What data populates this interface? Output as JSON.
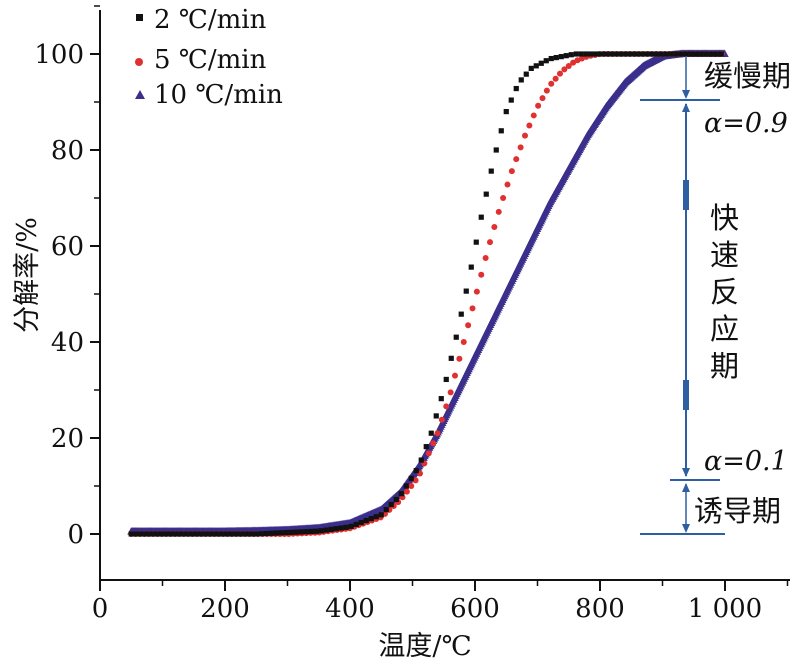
{
  "chart_data": {
    "type": "scatter",
    "xlabel": "温度/℃",
    "ylabel": "分解率/%",
    "xlim": [
      0,
      1100
    ],
    "ylim": [
      -10,
      110
    ],
    "xticks": [
      0,
      200,
      400,
      600,
      800,
      1000
    ],
    "xtick_labels": [
      "0",
      "200",
      "400",
      "600",
      "800",
      "1 000"
    ],
    "yticks": [
      0,
      20,
      40,
      60,
      80,
      100
    ],
    "ytick_labels": [
      "0",
      "20",
      "40",
      "60",
      "80",
      "100"
    ],
    "grid": false,
    "legend_position": "top-left",
    "series": [
      {
        "name": "2 ℃/min",
        "marker": "square",
        "color": "#111111",
        "x": [
          50,
          100,
          150,
          200,
          250,
          300,
          350,
          400,
          450,
          480,
          510,
          530,
          550,
          570,
          590,
          610,
          630,
          650,
          670,
          690,
          720,
          760,
          800,
          860,
          920,
          1000
        ],
        "y": [
          0,
          0,
          0,
          0,
          0,
          0.3,
          0.6,
          1.5,
          4,
          8,
          14,
          21,
          30,
          41,
          53,
          66,
          78,
          88,
          94,
          97,
          99,
          100,
          100,
          100,
          100,
          100
        ]
      },
      {
        "name": "5 ℃/min",
        "marker": "circle",
        "color": "#e03030",
        "x": [
          50,
          100,
          150,
          200,
          250,
          300,
          350,
          400,
          450,
          480,
          510,
          540,
          560,
          580,
          600,
          620,
          640,
          660,
          680,
          700,
          720,
          740,
          760,
          780,
          800,
          850,
          900,
          950,
          1000
        ],
        "y": [
          0,
          0,
          0,
          0,
          0,
          0,
          0.3,
          1.2,
          3.5,
          7,
          12,
          21,
          29,
          39,
          49,
          59,
          68,
          76,
          83,
          89,
          93.5,
          96.5,
          98.5,
          99.5,
          100,
          100,
          100,
          100,
          100
        ]
      },
      {
        "name": "10 ℃/min",
        "marker": "triangle",
        "color": "#3b2f8c",
        "x": [
          50,
          100,
          150,
          200,
          250,
          300,
          350,
          400,
          450,
          480,
          510,
          540,
          570,
          600,
          630,
          660,
          690,
          720,
          750,
          780,
          810,
          840,
          870,
          900,
          930,
          960,
          1000
        ],
        "y": [
          0.5,
          0.5,
          0.5,
          0.5,
          0.6,
          0.8,
          1.2,
          2.2,
          5,
          8.5,
          14,
          21,
          29,
          37,
          45,
          53,
          61,
          69,
          76,
          83,
          89,
          94,
          97.5,
          99.5,
          100,
          100,
          100
        ]
      }
    ],
    "annotations": {
      "alpha_high": "α=0.9",
      "alpha_low": "α=0.1",
      "phase_slow": "缓慢期",
      "phase_fast": [
        "快",
        "速",
        "反",
        "应",
        "期"
      ],
      "phase_induction": "诱导期"
    }
  }
}
